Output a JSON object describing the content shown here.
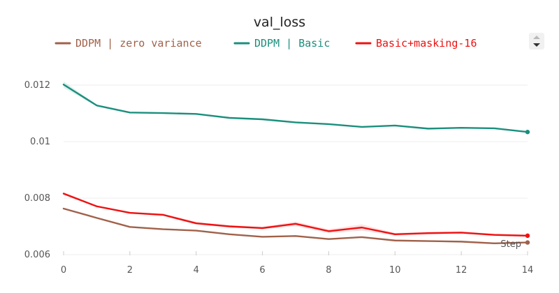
{
  "chart_data": {
    "type": "line",
    "title": "val_loss",
    "xlabel": "Step",
    "ylabel": "",
    "xlim": [
      0,
      14
    ],
    "ylim": [
      0.006,
      0.0125
    ],
    "x_ticks": [
      0,
      2,
      4,
      6,
      8,
      10,
      12,
      14
    ],
    "y_ticks": [
      0.006,
      0.008,
      0.01,
      0.012
    ],
    "y_tick_labels": [
      "0.006",
      "0.008",
      "0.01",
      "0.012"
    ],
    "grid": true,
    "legend_position": "top",
    "x": [
      0,
      1,
      2,
      3,
      4,
      5,
      6,
      7,
      8,
      9,
      10,
      11,
      12,
      13,
      14
    ],
    "series": [
      {
        "name": "DDPM | zero variance",
        "color": "#a0614a",
        "values": [
          0.00763,
          0.0073,
          0.00698,
          0.0069,
          0.00685,
          0.00672,
          0.00663,
          0.00666,
          0.00655,
          0.00662,
          0.0065,
          0.00648,
          0.00646,
          0.0064,
          0.00643
        ],
        "band": [
          0,
          0,
          0,
          0,
          0,
          0,
          0,
          0,
          0,
          0,
          0,
          0,
          0,
          0,
          0
        ]
      },
      {
        "name": "DDPM | Basic",
        "color": "#1a8f7d",
        "values": [
          0.01202,
          0.01128,
          0.01103,
          0.01101,
          0.01098,
          0.01084,
          0.01079,
          0.01068,
          0.01062,
          0.01052,
          0.01057,
          0.01046,
          0.01049,
          0.01047,
          0.01034
        ],
        "band": [
          0.00012,
          3e-05,
          2e-05,
          2e-05,
          2e-05,
          4e-05,
          3e-05,
          3e-05,
          2e-05,
          2e-05,
          2e-05,
          2e-05,
          2e-05,
          2e-05,
          2e-05
        ]
      },
      {
        "name": "Basic+masking-16",
        "color": "#ee1111",
        "values": [
          0.00816,
          0.00771,
          0.00748,
          0.00741,
          0.00711,
          0.007,
          0.00694,
          0.00709,
          0.00683,
          0.00696,
          0.00672,
          0.00676,
          0.00678,
          0.0067,
          0.00667
        ],
        "band": [
          5e-05,
          3e-05,
          3e-05,
          4e-05,
          5e-05,
          4e-05,
          5e-05,
          8e-05,
          7e-05,
          0.00011,
          5e-05,
          5e-05,
          4e-05,
          4e-05,
          3e-05
        ]
      }
    ]
  }
}
